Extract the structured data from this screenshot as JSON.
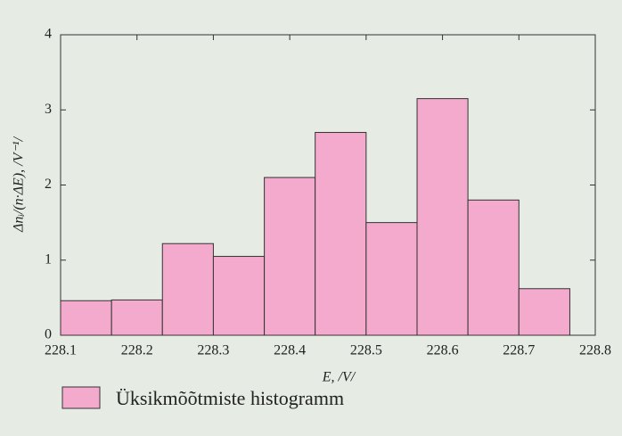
{
  "chart_data": {
    "type": "histogram",
    "x_label": "E, /V/",
    "y_label": "Δnᵢ/(n·ΔE), /V⁻¹/",
    "bins": [
      228.1,
      228.1667,
      228.2333,
      228.3,
      228.3667,
      228.4333,
      228.5,
      228.5667,
      228.6333,
      228.7,
      228.7667
    ],
    "series": [
      {
        "name": "Üksikmõõtmiste histogramm",
        "color": "#f4aacd",
        "values": [
          0.46,
          0.47,
          1.22,
          1.05,
          2.1,
          2.7,
          1.5,
          3.15,
          1.8,
          0.62
        ]
      }
    ],
    "xlim": [
      228.1,
      228.8
    ],
    "xticks": [
      228.1,
      228.2,
      228.3,
      228.4,
      228.5,
      228.6,
      228.7,
      228.8
    ],
    "ylim": [
      0,
      4
    ],
    "yticks": [
      0,
      1,
      2,
      3,
      4
    ]
  }
}
